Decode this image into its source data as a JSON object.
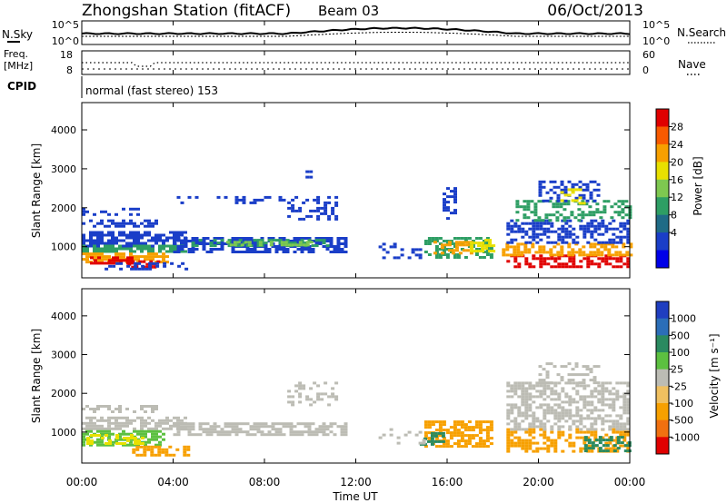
{
  "header": {
    "station": "Zhongshan Station (fitACF)",
    "beam": "Beam 03",
    "date": "06/Oct/2013"
  },
  "strip_panels": {
    "nsky_label": "N.Sky",
    "nsky_ticks": [
      "10^5",
      "10^0"
    ],
    "nsearch_label": "N.Search",
    "nsearch_ticks": [
      "10^5",
      "10^0"
    ],
    "freq_label": "Freq.",
    "freq_unit": "[MHz]",
    "freq_ticks": [
      "18",
      "8"
    ],
    "nave_label": "Nave",
    "nave_ticks": [
      "60",
      "0"
    ],
    "cpid_label": "CPID",
    "cpid_text": "normal (fast stereo) 153"
  },
  "chart_data": [
    {
      "type": "heatmap",
      "name": "power",
      "ylabel": "Slant Range [km]",
      "yticks": [
        "4000",
        "3000",
        "2000",
        "1000"
      ],
      "ytick_values": [
        4000,
        3000,
        2000,
        1000
      ],
      "ylim": [
        200,
        4700
      ],
      "xlim_hours": [
        0,
        24
      ],
      "colorbar_label": "Power [dB]",
      "colorbar_ticks": [
        "28",
        "24",
        "20",
        "16",
        "12",
        "8",
        "4"
      ],
      "colorbar_colors": [
        "#e00000",
        "#f85a00",
        "#f7a000",
        "#e8e000",
        "#7ec850",
        "#2e9e64",
        "#1f6b86",
        "#1a3ec8",
        "#0000e8"
      ],
      "regions": [
        {
          "t0": 0.0,
          "t1": 3.2,
          "r0": 1500,
          "r1": 1700,
          "c": "#1a3ec8",
          "d": 0.55
        },
        {
          "t0": 0.0,
          "t1": 2.5,
          "r0": 1850,
          "r1": 2000,
          "c": "#1a3ec8",
          "d": 0.35
        },
        {
          "t0": 0.0,
          "t1": 4.5,
          "r0": 1050,
          "r1": 1400,
          "c": "#1a3ec8",
          "d": 0.7
        },
        {
          "t0": 0.0,
          "t1": 4.6,
          "r0": 850,
          "r1": 1050,
          "c": "#2e9e64",
          "d": 0.75
        },
        {
          "t0": 0.0,
          "t1": 3.8,
          "r0": 600,
          "r1": 850,
          "c": "#f7a000",
          "d": 0.7
        },
        {
          "t0": 0.2,
          "t1": 2.2,
          "r0": 550,
          "r1": 750,
          "c": "#e00000",
          "d": 0.55
        },
        {
          "t0": 2.0,
          "t1": 3.4,
          "r0": 450,
          "r1": 650,
          "c": "#e00000",
          "d": 0.6
        },
        {
          "t0": 1.0,
          "t1": 4.6,
          "r0": 400,
          "r1": 600,
          "c": "#1a3ec8",
          "d": 0.45
        },
        {
          "t0": 4.0,
          "t1": 11.6,
          "r0": 900,
          "r1": 1250,
          "c": "#1a3ec8",
          "d": 0.65
        },
        {
          "t0": 4.8,
          "t1": 10.8,
          "r0": 1000,
          "r1": 1200,
          "c": "#2e9e64",
          "d": 0.55
        },
        {
          "t0": 6.0,
          "t1": 10.0,
          "r0": 1050,
          "r1": 1150,
          "c": "#7ec850",
          "d": 0.45
        },
        {
          "t0": 9.0,
          "t1": 11.2,
          "r0": 1700,
          "r1": 2300,
          "c": "#1a3ec8",
          "d": 0.35
        },
        {
          "t0": 4.0,
          "t1": 9.0,
          "r0": 2150,
          "r1": 2300,
          "c": "#1a3ec8",
          "d": 0.18
        },
        {
          "t0": 9.8,
          "t1": 10.1,
          "r0": 2800,
          "r1": 3100,
          "c": "#1a3ec8",
          "d": 0.3
        },
        {
          "t0": 15.0,
          "t1": 18.0,
          "r0": 750,
          "r1": 1250,
          "c": "#2e9e64",
          "d": 0.55
        },
        {
          "t0": 15.4,
          "t1": 17.0,
          "r0": 850,
          "r1": 1150,
          "c": "#f7a000",
          "d": 0.55
        },
        {
          "t0": 17.0,
          "t1": 18.0,
          "r0": 900,
          "r1": 1200,
          "c": "#e8e000",
          "d": 0.45
        },
        {
          "t0": 15.8,
          "t1": 16.4,
          "r0": 1700,
          "r1": 2600,
          "c": "#1a3ec8",
          "d": 0.35
        },
        {
          "t0": 18.6,
          "t1": 24.0,
          "r0": 500,
          "r1": 800,
          "c": "#e00000",
          "d": 0.6
        },
        {
          "t0": 18.4,
          "t1": 24.0,
          "r0": 800,
          "r1": 1100,
          "c": "#f7a000",
          "d": 0.55
        },
        {
          "t0": 18.6,
          "t1": 24.0,
          "r0": 1100,
          "r1": 1700,
          "c": "#1a3ec8",
          "d": 0.55
        },
        {
          "t0": 19.0,
          "t1": 24.0,
          "r0": 1700,
          "r1": 2200,
          "c": "#2e9e64",
          "d": 0.45
        },
        {
          "t0": 20.0,
          "t1": 22.6,
          "r0": 2200,
          "r1": 2700,
          "c": "#1a3ec8",
          "d": 0.45
        },
        {
          "t0": 20.8,
          "t1": 22.0,
          "r0": 2100,
          "r1": 2500,
          "c": "#e8e000",
          "d": 0.35
        },
        {
          "t0": 13.0,
          "t1": 15.0,
          "r0": 700,
          "r1": 1100,
          "c": "#1a3ec8",
          "d": 0.25
        }
      ]
    },
    {
      "type": "heatmap",
      "name": "velocity",
      "ylabel": "Slant Range [km]",
      "yticks": [
        "4000",
        "3000",
        "2000",
        "1000"
      ],
      "ytick_values": [
        4000,
        3000,
        2000,
        1000
      ],
      "ylim": [
        200,
        4700
      ],
      "xlim_hours": [
        0,
        24
      ],
      "xticks": [
        "00:00",
        "04:00",
        "08:00",
        "12:00",
        "16:00",
        "20:00",
        "00:00"
      ],
      "xtick_hours": [
        0,
        4,
        8,
        12,
        16,
        20,
        24
      ],
      "xlabel": "Time UT",
      "colorbar_label": "Velocity [m s⁻¹]",
      "colorbar_ticks": [
        "1000",
        "500",
        "100",
        "25",
        "-25",
        "-100",
        "-500",
        "-1000"
      ],
      "colorbar_colors": [
        "#1f3ec0",
        "#2b6eb8",
        "#2a8a60",
        "#5cc040",
        "#bcbcb4",
        "#f0c060",
        "#f7a000",
        "#f07010",
        "#e00000"
      ],
      "regions": [
        {
          "t0": 0.0,
          "t1": 3.2,
          "r0": 1500,
          "r1": 1700,
          "c": "#bcbcb4",
          "d": 0.55
        },
        {
          "t0": 0.0,
          "t1": 4.5,
          "r0": 1050,
          "r1": 1400,
          "c": "#bcbcb4",
          "d": 0.6
        },
        {
          "t0": 0.0,
          "t1": 3.6,
          "r0": 650,
          "r1": 1050,
          "c": "#5cc040",
          "d": 0.65
        },
        {
          "t0": 0.2,
          "t1": 2.6,
          "r0": 700,
          "r1": 950,
          "c": "#e8e000",
          "d": 0.4
        },
        {
          "t0": 2.2,
          "t1": 4.6,
          "r0": 400,
          "r1": 650,
          "c": "#f7a000",
          "d": 0.5
        },
        {
          "t0": 4.0,
          "t1": 11.6,
          "r0": 950,
          "r1": 1250,
          "c": "#bcbcb4",
          "d": 0.7
        },
        {
          "t0": 9.0,
          "t1": 11.2,
          "r0": 1700,
          "r1": 2300,
          "c": "#bcbcb4",
          "d": 0.3
        },
        {
          "t0": 15.0,
          "t1": 18.0,
          "r0": 650,
          "r1": 1300,
          "c": "#f7a000",
          "d": 0.65
        },
        {
          "t0": 14.8,
          "t1": 15.8,
          "r0": 650,
          "r1": 1000,
          "c": "#2a8a60",
          "d": 0.5
        },
        {
          "t0": 18.6,
          "t1": 24.0,
          "r0": 500,
          "r1": 1100,
          "c": "#f7a000",
          "d": 0.5
        },
        {
          "t0": 22.0,
          "t1": 24.0,
          "r0": 500,
          "r1": 900,
          "c": "#2a8a60",
          "d": 0.55
        },
        {
          "t0": 18.6,
          "t1": 24.0,
          "r0": 1100,
          "r1": 2300,
          "c": "#bcbcb4",
          "d": 0.55
        },
        {
          "t0": 20.0,
          "t1": 22.6,
          "r0": 2300,
          "r1": 2800,
          "c": "#bcbcb4",
          "d": 0.4
        },
        {
          "t0": 13.0,
          "t1": 15.0,
          "r0": 700,
          "r1": 1100,
          "c": "#bcbcb4",
          "d": 0.2
        }
      ]
    }
  ]
}
